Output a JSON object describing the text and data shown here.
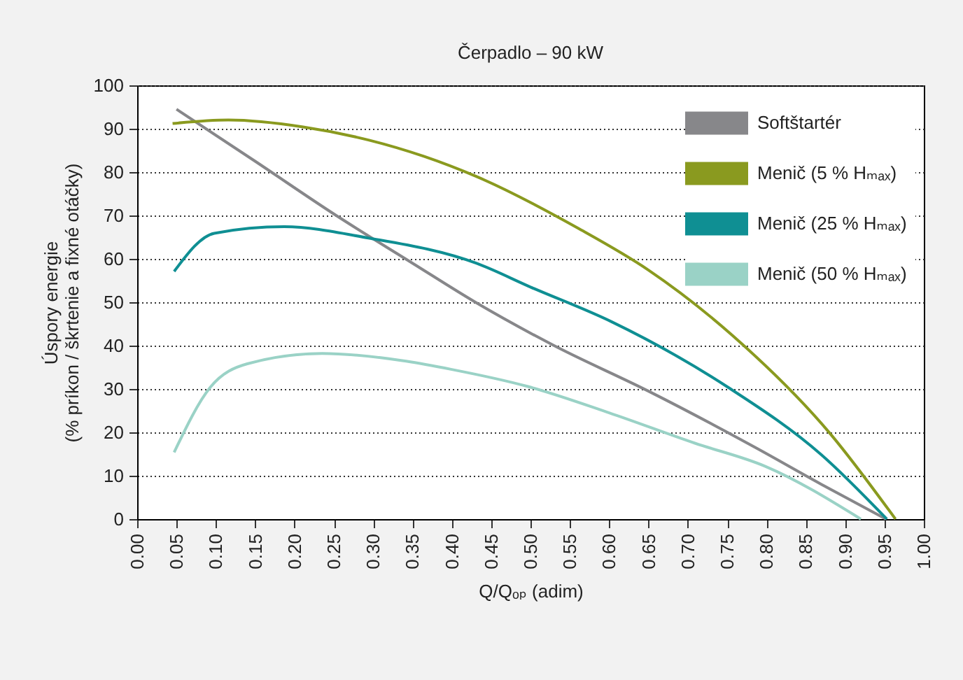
{
  "chart_data": {
    "type": "line",
    "title": "Čerpadlo – 90 kW",
    "xlabel": "Q/Qₒₚ (adim)",
    "ylabel": "Úspory energie\n(% príkon / škrtenie a fixné otáčky)",
    "xlim": [
      0,
      1
    ],
    "ylim": [
      0,
      100
    ],
    "xticks": [
      {
        "value": 0,
        "label": "0.00"
      },
      {
        "value": 0.05,
        "label": "0.05"
      },
      {
        "value": 0.1,
        "label": "0.10"
      },
      {
        "value": 0.15,
        "label": "0.15"
      },
      {
        "value": 0.2,
        "label": "0.20"
      },
      {
        "value": 0.25,
        "label": "0.25"
      },
      {
        "value": 0.3,
        "label": "0.30"
      },
      {
        "value": 0.35,
        "label": "0.35"
      },
      {
        "value": 0.4,
        "label": "0.40"
      },
      {
        "value": 0.45,
        "label": "0.45"
      },
      {
        "value": 0.5,
        "label": "0.50"
      },
      {
        "value": 0.55,
        "label": "0.55"
      },
      {
        "value": 0.6,
        "label": "0.60"
      },
      {
        "value": 0.65,
        "label": "0.65"
      },
      {
        "value": 0.7,
        "label": "0.70"
      },
      {
        "value": 0.75,
        "label": "0.75"
      },
      {
        "value": 0.8,
        "label": "0.80"
      },
      {
        "value": 0.85,
        "label": "0.85"
      },
      {
        "value": 0.9,
        "label": "0.90"
      },
      {
        "value": 0.95,
        "label": "0.95"
      },
      {
        "value": 1,
        "label": "1.00"
      }
    ],
    "yticks": [
      0,
      10,
      20,
      30,
      40,
      50,
      60,
      70,
      80,
      90,
      100
    ],
    "grid": "y",
    "legend": "top right",
    "series": [
      {
        "name": "Softštartér",
        "color": "#87878a",
        "x": [
          0.05,
          0.15,
          0.253,
          0.35,
          0.43,
          0.53,
          0.65,
          0.786,
          0.87,
          0.952
        ],
        "values": [
          94.5,
          82.5,
          70,
          59,
          50,
          40,
          29.5,
          16.5,
          8,
          0
        ]
      },
      {
        "name": "Menič (5 % Hₘₐₓ)",
        "color": "#8a9a1f",
        "x": [
          0.045,
          0.116,
          0.211,
          0.294,
          0.365,
          0.431,
          0.561,
          0.65,
          0.757,
          0.881,
          0.964
        ],
        "values": [
          91.2,
          92,
          90.4,
          87.4,
          83.6,
          79,
          67,
          57.4,
          42.3,
          19.7,
          0
        ]
      },
      {
        "name": "Menič (25 % Hₘₐₓ)",
        "color": "#0f8f93",
        "x": [
          0.047,
          0.098,
          0.187,
          0.294,
          0.431,
          0.5,
          0.603,
          0.751,
          0.87,
          0.953
        ],
        "values": [
          57.1,
          65.9,
          67.4,
          64.8,
          59,
          53.5,
          45.5,
          30.4,
          14.8,
          0
        ]
      },
      {
        "name": "Menič (50 % Hₘₐₓ)",
        "color": "#9ad2c6",
        "x": [
          0.047,
          0.093,
          0.14,
          0.235,
          0.342,
          0.4,
          0.496,
          0.6,
          0.709,
          0.798,
          0.92
        ],
        "values": [
          15.4,
          30.4,
          35.8,
          38.2,
          36.4,
          34.5,
          30.6,
          24.5,
          17.5,
          12.2,
          0
        ]
      }
    ]
  }
}
